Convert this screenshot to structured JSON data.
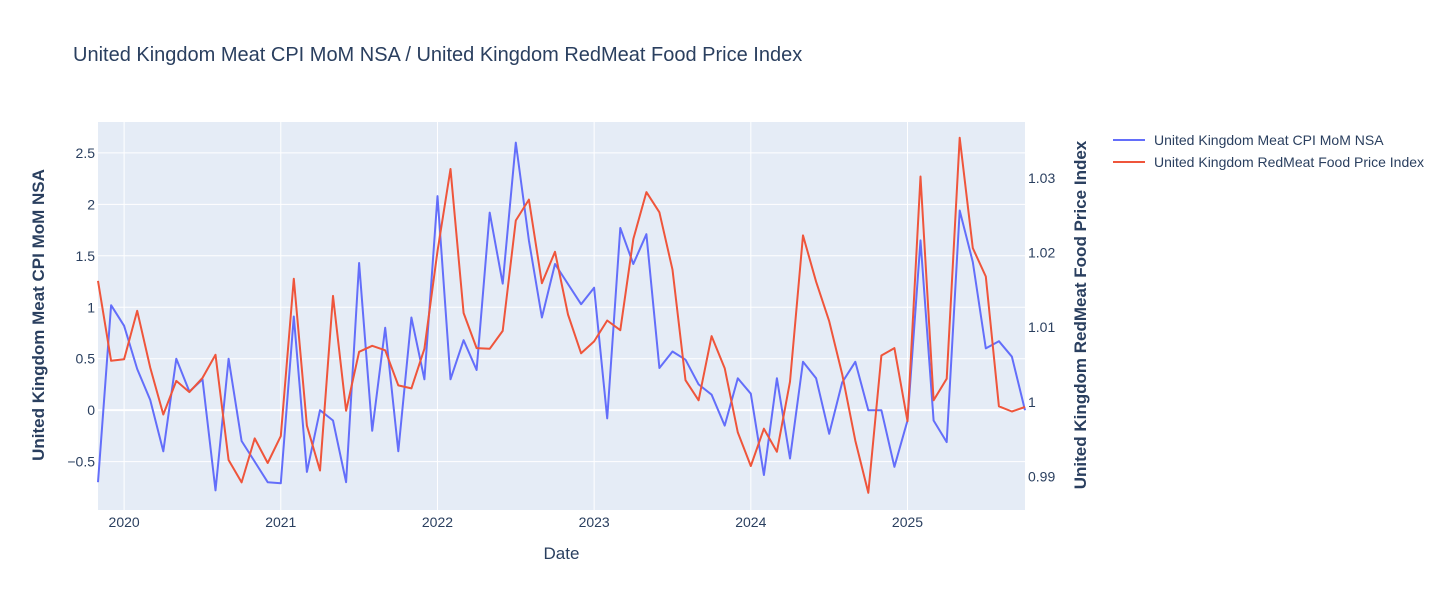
{
  "chart_data": {
    "type": "line",
    "title": "United Kingdom Meat CPI MoM NSA / United Kingdom RedMeat Food Price Index",
    "xlabel": "Date",
    "ylabel": "United Kingdom Meat CPI MoM NSA",
    "y2label": "United Kingdom RedMeat Food Price Index",
    "x_ticks": [
      "2020",
      "2021",
      "2022",
      "2023",
      "2024",
      "2025"
    ],
    "y_ticks": [
      "2.5",
      "2",
      "1.5",
      "1",
      "0.5",
      "0",
      "−0.5"
    ],
    "y2_ticks": [
      "1.03",
      "1.02",
      "1.01",
      "1",
      "0.99"
    ],
    "xlim": [
      "2019-11",
      "2025-10"
    ],
    "ylim": [
      -0.97,
      2.8
    ],
    "y2lim": [
      0.9855,
      1.0375
    ],
    "legend_position": "top-right",
    "series": [
      {
        "name": "United Kingdom Meat CPI MoM NSA",
        "color": "#636efa",
        "axis": "y",
        "x": [
          "2019-11",
          "2019-12",
          "2020-01",
          "2020-02",
          "2020-03",
          "2020-04",
          "2020-05",
          "2020-06",
          "2020-07",
          "2020-08",
          "2020-09",
          "2020-10",
          "2020-11",
          "2020-12",
          "2021-01",
          "2021-02",
          "2021-03",
          "2021-04",
          "2021-05",
          "2021-06",
          "2021-07",
          "2021-08",
          "2021-09",
          "2021-10",
          "2021-11",
          "2021-12",
          "2022-01",
          "2022-02",
          "2022-03",
          "2022-04",
          "2022-05",
          "2022-06",
          "2022-07",
          "2022-08",
          "2022-09",
          "2022-10",
          "2022-12",
          "2023-01",
          "2023-02",
          "2023-03",
          "2023-04",
          "2023-05",
          "2023-06",
          "2023-07",
          "2023-08",
          "2023-09",
          "2023-10",
          "2023-11",
          "2023-12",
          "2024-01",
          "2024-02",
          "2024-03",
          "2024-04",
          "2024-05",
          "2024-06",
          "2024-07",
          "2024-08",
          "2024-09",
          "2024-10",
          "2024-11",
          "2024-12",
          "2025-01",
          "2025-02",
          "2025-03",
          "2025-04",
          "2025-05",
          "2025-06",
          "2025-07",
          "2025-08",
          "2025-09",
          "2025-10"
        ],
        "values": [
          -0.7,
          1.02,
          0.82,
          0.4,
          0.1,
          -0.4,
          0.5,
          0.18,
          0.3,
          -0.78,
          0.5,
          -0.3,
          -0.5,
          -0.7,
          -0.71,
          0.91,
          -0.6,
          0.0,
          -0.1,
          -0.7,
          1.43,
          -0.2,
          0.8,
          -0.4,
          0.9,
          0.3,
          2.08,
          0.3,
          0.68,
          0.39,
          1.92,
          1.23,
          2.6,
          1.65,
          0.9,
          1.42,
          1.03,
          1.19,
          -0.08,
          1.77,
          1.42,
          1.71,
          0.41,
          0.57,
          0.49,
          0.25,
          0.15,
          -0.15,
          0.31,
          0.16,
          -0.63,
          0.31,
          -0.47,
          0.47,
          0.31,
          -0.23,
          0.27,
          0.47,
          0.0,
          0.0,
          -0.55,
          -0.1,
          1.65,
          -0.1,
          -0.31,
          1.94,
          1.44,
          0.6,
          0.67,
          0.52,
          0.0
        ]
      },
      {
        "name": "United Kingdom RedMeat Food Price Index",
        "color": "#ef553b",
        "axis": "y2",
        "x": [
          "2019-11",
          "2019-12",
          "2020-01",
          "2020-02",
          "2020-03",
          "2020-04",
          "2020-05",
          "2020-06",
          "2020-07",
          "2020-08",
          "2020-09",
          "2020-10",
          "2020-11",
          "2020-12",
          "2021-01",
          "2021-02",
          "2021-03",
          "2021-04",
          "2021-05",
          "2021-06",
          "2021-07",
          "2021-08",
          "2021-09",
          "2021-10",
          "2021-11",
          "2021-12",
          "2022-01",
          "2022-02",
          "2022-03",
          "2022-04",
          "2022-05",
          "2022-06",
          "2022-07",
          "2022-08",
          "2022-09",
          "2022-10",
          "2022-11",
          "2022-12",
          "2023-01",
          "2023-02",
          "2023-03",
          "2023-04",
          "2023-05",
          "2023-06",
          "2023-07",
          "2023-08",
          "2023-09",
          "2023-10",
          "2023-11",
          "2023-12",
          "2024-01",
          "2024-02",
          "2024-03",
          "2024-04",
          "2024-05",
          "2024-06",
          "2024-07",
          "2024-08",
          "2024-09",
          "2024-10",
          "2024-11",
          "2024-12",
          "2025-01",
          "2025-02",
          "2025-03",
          "2025-04",
          "2025-05",
          "2025-06",
          "2025-07",
          "2025-08",
          "2025-09",
          "2025-10"
        ],
        "values": [
          1.0162,
          1.0055,
          1.0057,
          1.0122,
          1.0046,
          0.9983,
          1.0028,
          1.0013,
          1.0032,
          1.0063,
          0.9922,
          0.9892,
          0.9951,
          0.9918,
          0.9954,
          1.0165,
          0.9968,
          0.9908,
          1.0142,
          0.9988,
          1.0067,
          1.0075,
          1.0069,
          1.0022,
          1.0018,
          1.0071,
          1.0202,
          1.0312,
          1.0119,
          1.0072,
          1.0071,
          1.0095,
          1.0243,
          1.0271,
          1.0159,
          1.0201,
          1.0117,
          1.0065,
          1.0081,
          1.0109,
          1.0096,
          1.0218,
          1.0281,
          1.0254,
          1.0177,
          1.0029,
          1.0002,
          1.0088,
          1.0045,
          0.9959,
          0.9914,
          0.9964,
          0.9933,
          1.0027,
          1.0223,
          1.0161,
          1.0108,
          1.0037,
          0.9948,
          0.9878,
          1.0062,
          1.0072,
          0.9974,
          1.0302,
          1.0002,
          1.0031,
          1.0354,
          1.0206,
          1.0168,
          0.9994,
          0.9987,
          0.9993
        ]
      }
    ]
  }
}
